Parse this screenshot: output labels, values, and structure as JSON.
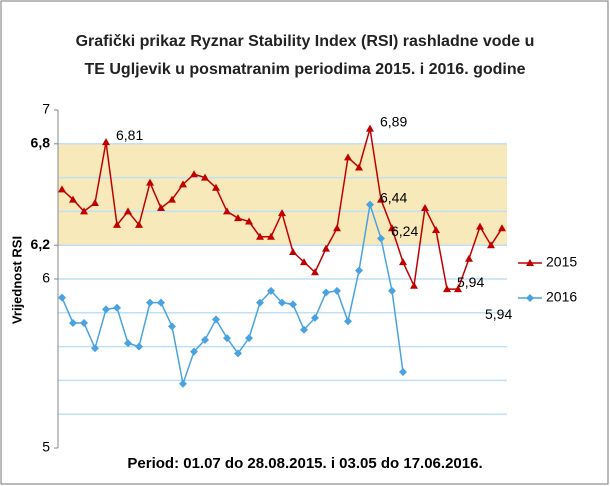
{
  "chart_data": {
    "type": "line",
    "title": [
      "Grafički prikaz Ryznar Stability Index (RSI) rashladne vode u",
      "TE Ugljevik u posmatranim periodima 2015.  i 2016.  godine"
    ],
    "y_label": "Vrijednost RSI",
    "x_label": "Period: 01.07 do 28.08.2015. i 03.05 do 17.06.2016.",
    "categories": [
      null,
      null,
      null,
      null,
      null,
      null,
      null,
      null,
      null,
      null,
      null,
      null,
      null,
      null,
      null,
      null,
      null,
      null,
      null,
      null,
      null,
      null,
      null,
      null,
      null,
      null,
      null,
      null,
      null,
      null,
      null,
      null,
      null,
      null,
      null,
      null,
      null,
      null,
      null,
      null,
      null
    ],
    "series": [
      {
        "name": "2015",
        "color": "#c00000",
        "label_color": "#d03a3a",
        "marker": "triangle",
        "values": [
          6.53,
          6.47,
          6.4,
          6.45,
          6.81,
          6.32,
          6.4,
          6.32,
          6.57,
          6.42,
          6.47,
          6.56,
          6.62,
          6.6,
          6.54,
          6.4,
          6.36,
          6.34,
          6.25,
          6.25,
          6.39,
          6.16,
          6.1,
          6.04,
          6.18,
          6.3,
          6.72,
          6.66,
          6.89,
          6.47,
          6.3,
          6.1,
          5.96,
          6.42,
          6.29,
          5.94,
          5.94,
          6.12,
          6.31,
          6.2,
          6.3
        ],
        "value_labels": [
          null,
          null,
          null,
          null,
          "6,81",
          null,
          null,
          null,
          null,
          null,
          null,
          null,
          null,
          null,
          null,
          null,
          null,
          null,
          null,
          null,
          null,
          null,
          null,
          null,
          null,
          null,
          null,
          null,
          "6,89",
          null,
          null,
          null,
          null,
          null,
          null,
          "5,94",
          "5,94",
          null,
          null,
          null,
          null
        ]
      },
      {
        "name": "2016",
        "color": "#4aa3e0",
        "label_color": "#4aa3e0",
        "marker": "diamond",
        "values": [
          5.89,
          5.74,
          5.74,
          5.59,
          5.82,
          5.83,
          5.62,
          5.6,
          5.86,
          5.86,
          5.72,
          5.38,
          5.57,
          5.64,
          5.76,
          5.65,
          5.56,
          5.65,
          5.86,
          5.93,
          5.86,
          5.85,
          5.7,
          5.77,
          5.92,
          5.93,
          5.75,
          6.05,
          6.44,
          6.24,
          5.93,
          5.45,
          null,
          null,
          null,
          null,
          null,
          null,
          null,
          null,
          null
        ],
        "value_labels": [
          null,
          null,
          null,
          null,
          null,
          null,
          null,
          null,
          null,
          null,
          null,
          null,
          null,
          null,
          null,
          null,
          null,
          null,
          null,
          null,
          null,
          null,
          null,
          null,
          null,
          null,
          null,
          null,
          "6,44",
          "6,24",
          null,
          null,
          null,
          null,
          null,
          null,
          null,
          null,
          null,
          null,
          null
        ]
      }
    ],
    "ylim": [
      5,
      7
    ],
    "yticks": [
      5,
      6,
      {
        "value": 6.2,
        "label": "6,2"
      },
      {
        "value": 6.8,
        "label": "6,8"
      },
      7
    ],
    "grid_values": [
      5.2,
      5.4,
      5.6,
      5.8,
      6,
      6.2,
      6.4,
      6.6,
      6.8
    ],
    "grid_color": "#bfe0f5",
    "band": {
      "from": 6.2,
      "to": 6.8,
      "color": "#f7e9b9"
    },
    "legend": "right"
  }
}
